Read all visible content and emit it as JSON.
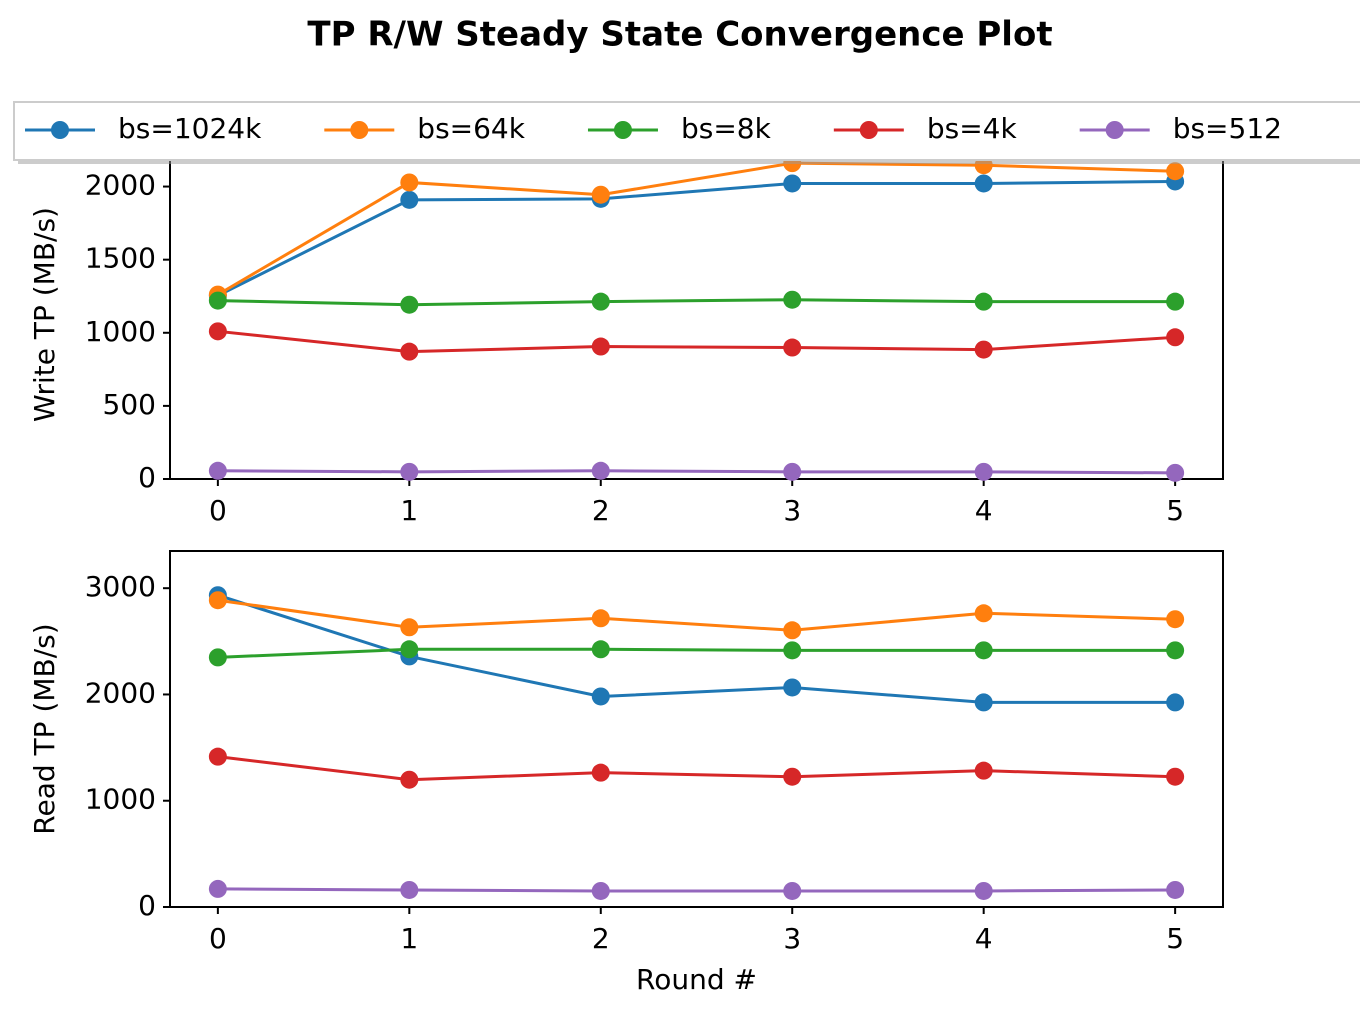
{
  "chart_data": [
    {
      "type": "line",
      "title": "TP R/W Steady State Convergence Plot",
      "y_label": "Write TP (MB/s)",
      "x": [
        0,
        1,
        2,
        3,
        4,
        5
      ],
      "xlim": [
        -0.25,
        5.25
      ],
      "xticks": [
        0,
        1,
        2,
        3,
        4,
        5
      ],
      "ylim": [
        0,
        2250
      ],
      "yticks": [
        0,
        500,
        1000,
        1500,
        2000
      ],
      "legend": "top",
      "series": [
        {
          "name": "bs=1024k",
          "color": "#1f77b4",
          "values": [
            1254,
            1909,
            1916,
            2021,
            2021,
            2035
          ]
        },
        {
          "name": "bs=64k",
          "color": "#ff7f0e",
          "values": [
            1261,
            2028,
            1944,
            2160,
            2146,
            2105
          ]
        },
        {
          "name": "bs=8k",
          "color": "#2ca02c",
          "values": [
            1220,
            1192,
            1213,
            1226,
            1213,
            1213
          ]
        },
        {
          "name": "bs=4k",
          "color": "#d62728",
          "values": [
            1010,
            871,
            906,
            899,
            885,
            969
          ]
        },
        {
          "name": "bs=512",
          "color": "#9467bd",
          "values": [
            56,
            49,
            56,
            49,
            49,
            42
          ]
        }
      ]
    },
    {
      "type": "line",
      "y_label": "Read TP (MB/s)",
      "x_label": "Round #",
      "x": [
        0,
        1,
        2,
        3,
        4,
        5
      ],
      "xlim": [
        -0.25,
        5.25
      ],
      "xticks": [
        0,
        1,
        2,
        3,
        4,
        5
      ],
      "ylim": [
        0,
        3350
      ],
      "yticks": [
        0,
        1000,
        2000,
        3000
      ],
      "series": [
        {
          "color": "#1f77b4",
          "values": [
            2934,
            2358,
            1981,
            2066,
            1925,
            1925
          ]
        },
        {
          "color": "#ff7f0e",
          "values": [
            2887,
            2632,
            2717,
            2604,
            2764,
            2708
          ]
        },
        {
          "color": "#2ca02c",
          "values": [
            2349,
            2425,
            2425,
            2415,
            2415,
            2415
          ]
        },
        {
          "color": "#d62728",
          "values": [
            1415,
            1198,
            1264,
            1226,
            1283,
            1226
          ]
        },
        {
          "color": "#9467bd",
          "values": [
            170,
            160,
            151,
            151,
            151,
            160
          ]
        }
      ]
    }
  ]
}
